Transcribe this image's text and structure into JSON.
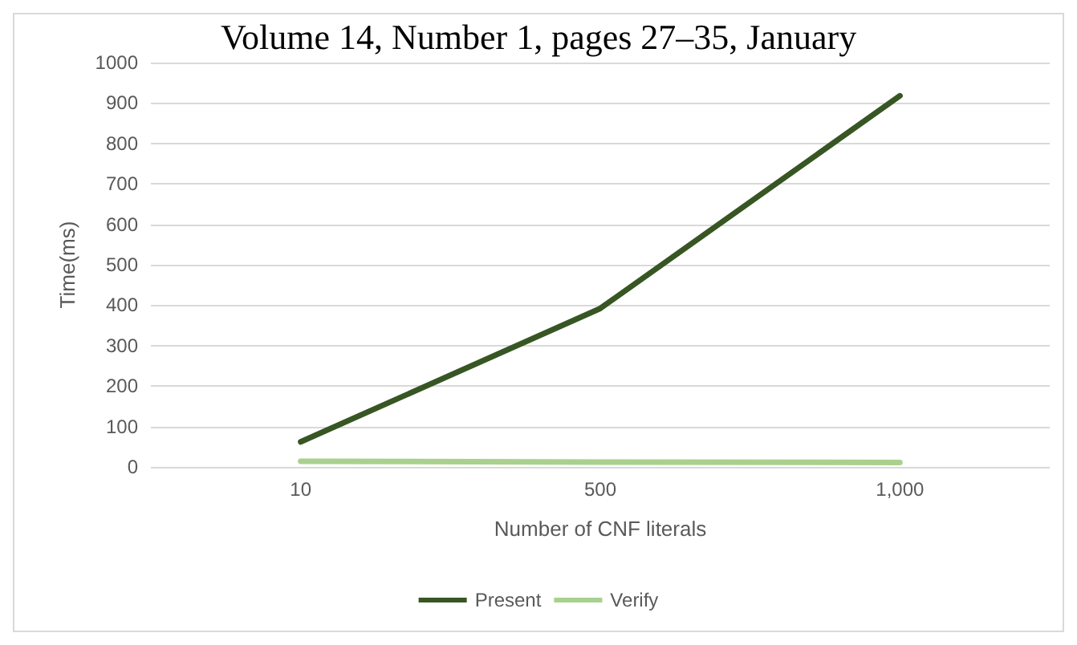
{
  "chart_data": {
    "type": "line",
    "xlabel": "Number of CNF literals",
    "ylabel": "Time(ms)",
    "annotations": [
      "Volume 14, Number 1, pages 27–35, January"
    ],
    "categories": [
      "10",
      "500",
      "1,000"
    ],
    "series": [
      {
        "name": "Present",
        "color": "#375623",
        "values": [
          62,
          392,
          918
        ]
      },
      {
        "name": "Verify",
        "color": "#a9d18e",
        "values": [
          14,
          12,
          11
        ]
      }
    ],
    "ylim": [
      0,
      1000
    ],
    "yticks": [
      0,
      100,
      200,
      300,
      400,
      500,
      600,
      700,
      800,
      900,
      1000
    ],
    "grid": "y",
    "legend": "bottom",
    "marker": "none",
    "line_style": "solid"
  }
}
